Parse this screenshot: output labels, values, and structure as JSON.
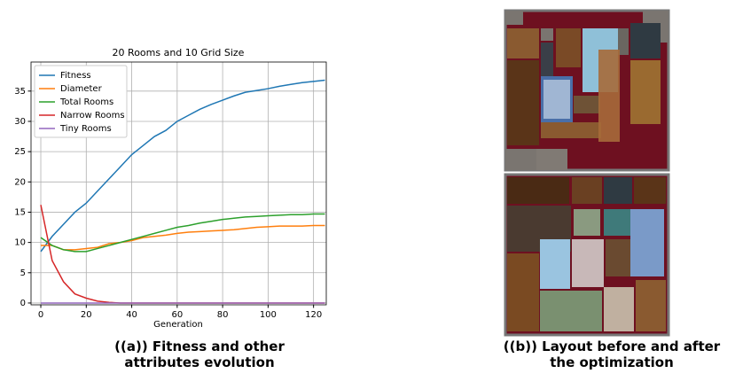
{
  "chart_data": {
    "type": "line",
    "title": "20 Rooms and 10 Grid Size",
    "x_label": "Generation",
    "x": [
      0,
      5,
      10,
      15,
      20,
      25,
      30,
      35,
      40,
      45,
      50,
      55,
      60,
      65,
      70,
      75,
      80,
      85,
      90,
      95,
      100,
      105,
      110,
      115,
      120,
      125
    ],
    "series": [
      {
        "name": "Fitness",
        "color": "#1f77b4",
        "values": [
          8.5,
          11,
          13,
          15,
          16.5,
          18.5,
          20.5,
          22.5,
          24.5,
          26,
          27.5,
          28.5,
          30,
          31,
          32,
          32.8,
          33.5,
          34.2,
          34.8,
          35.1,
          35.4,
          35.8,
          36.1,
          36.4,
          36.6,
          36.8
        ]
      },
      {
        "name": "Diameter",
        "color": "#ff7f0e",
        "values": [
          9.5,
          9.5,
          8.8,
          8.8,
          9,
          9.2,
          9.8,
          10,
          10.3,
          10.8,
          11,
          11.2,
          11.5,
          11.7,
          11.8,
          11.9,
          12,
          12.1,
          12.3,
          12.5,
          12.6,
          12.7,
          12.7,
          12.7,
          12.8,
          12.8
        ]
      },
      {
        "name": "Total Rooms",
        "color": "#2ca02c",
        "values": [
          10.8,
          9.5,
          8.8,
          8.5,
          8.5,
          9,
          9.5,
          10,
          10.5,
          11,
          11.5,
          12,
          12.5,
          12.8,
          13.2,
          13.5,
          13.8,
          14,
          14.2,
          14.3,
          14.4,
          14.5,
          14.6,
          14.6,
          14.7,
          14.7
        ]
      },
      {
        "name": "Narrow Rooms",
        "color": "#d62728",
        "values": [
          16.2,
          7,
          3.5,
          1.5,
          0.8,
          0.3,
          0.1,
          0,
          0,
          0,
          0,
          0,
          0,
          0,
          0,
          0,
          0,
          0,
          0,
          0,
          0,
          0,
          0,
          0,
          0,
          0
        ]
      },
      {
        "name": "Tiny Rooms",
        "color": "#9467bd",
        "values": [
          0,
          0,
          0,
          0,
          0,
          0,
          0,
          0,
          0,
          0,
          0,
          0,
          0,
          0,
          0,
          0,
          0,
          0,
          0,
          0,
          0,
          0,
          0,
          0,
          0,
          0
        ]
      }
    ],
    "xlim": [
      -4.3,
      125.6
    ],
    "ylim": [
      -0.3,
      39.8
    ],
    "xticks": [
      0,
      20,
      40,
      60,
      80,
      100,
      120
    ],
    "yticks": [
      0,
      5,
      10,
      15,
      20,
      25,
      30,
      35
    ],
    "grid": true,
    "legend": "upper-left"
  },
  "captions": {
    "a": "((a)) Fitness and other attributes evolution",
    "b": "((b)) Layout before and after the optimization"
  }
}
